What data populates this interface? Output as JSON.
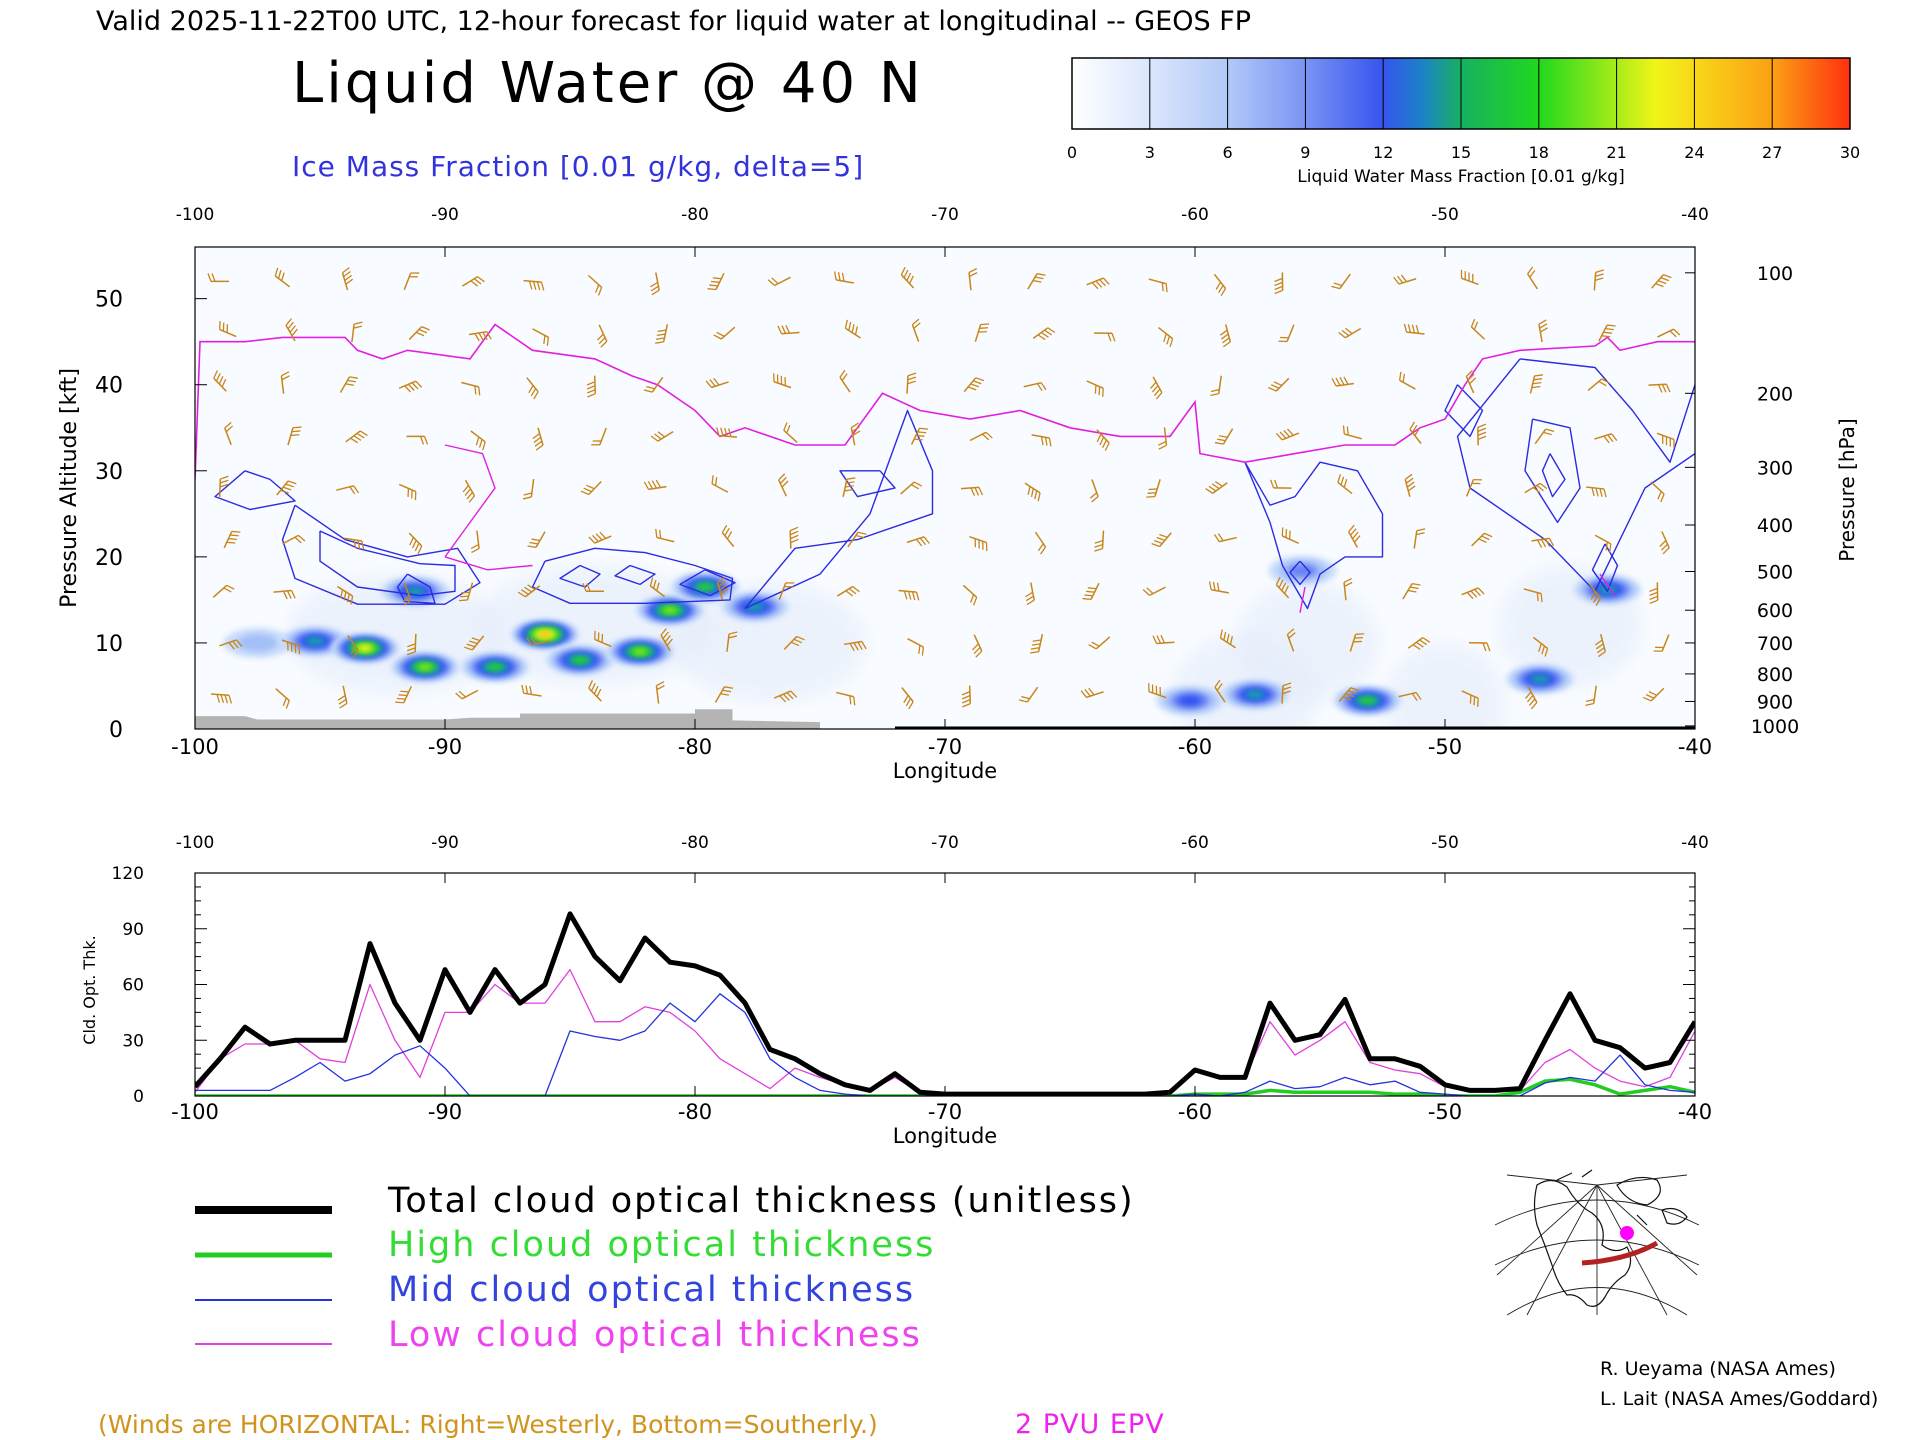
{
  "header": {
    "valid_line": "Valid 2025-11-22T00 UTC, 12-hour forecast for liquid water at longitudinal -- GEOS FP",
    "title": "Liquid Water @ 40 N",
    "subtitle": "Ice Mass Fraction [0.01 g/kg, delta=5]"
  },
  "colors": {
    "ice_contour": "#2b2be0",
    "epv": "#e020e0",
    "wind": "#c8861a",
    "total": "#000000",
    "high": "#22cc22",
    "mid": "#2233dd",
    "low": "#e040e0",
    "terrain": "#b4b4b4",
    "map_track": "#b22222",
    "map_point": "#ff00ff"
  },
  "colorbar": {
    "ticks": [
      "0",
      "3",
      "6",
      "9",
      "12",
      "15",
      "18",
      "21",
      "24",
      "27",
      "30"
    ],
    "label": "Liquid Water Mass Fraction [0.01 g/kg]",
    "colors": [
      "#f8fbff",
      "#c8dcfb",
      "#a4c0f8",
      "#6a82f4",
      "#2f52f0",
      "#18a0a8",
      "#20d020",
      "#8ee81a",
      "#f4f41a",
      "#fbb81a",
      "#ff4a10"
    ]
  },
  "chart_data": [
    {
      "type": "heatmap",
      "title": "Liquid Water @ 40 N",
      "xlabel": "Longitude",
      "ylabel": "Pressure Altitude [kft]",
      "y2label": "Pressure [hPa]",
      "xlim": [
        -100,
        -40
      ],
      "ylim": [
        0,
        56
      ],
      "x_ticks": [
        "-100",
        "-90",
        "-80",
        "-70",
        "-60",
        "-50",
        "-40"
      ],
      "x_tick_values": [
        -100,
        -90,
        -80,
        -70,
        -60,
        -50,
        -40
      ],
      "y_ticks": [
        "0",
        "10",
        "20",
        "30",
        "40",
        "50"
      ],
      "y_tick_values": [
        0,
        10,
        20,
        30,
        40,
        50
      ],
      "pressure_ticks": [
        "100",
        "200",
        "300",
        "400",
        "500",
        "600",
        "700",
        "800",
        "900",
        "1000"
      ],
      "pressure_tick_kft": [
        53,
        39,
        30.4,
        23.7,
        18.3,
        13.8,
        10,
        6.4,
        3.2,
        0.36
      ],
      "liquid_blobs": [
        {
          "lon": -97.5,
          "kft": 10.0,
          "value": 7
        },
        {
          "lon": -95.2,
          "kft": 10.2,
          "value": 15
        },
        {
          "lon": -93.2,
          "kft": 9.4,
          "value": 26
        },
        {
          "lon": -90.8,
          "kft": 7.2,
          "value": 21
        },
        {
          "lon": -91.2,
          "kft": 16.0,
          "value": 15
        },
        {
          "lon": -88.0,
          "kft": 7.2,
          "value": 20
        },
        {
          "lon": -86.0,
          "kft": 11.0,
          "value": 28
        },
        {
          "lon": -84.6,
          "kft": 8.0,
          "value": 20
        },
        {
          "lon": -82.2,
          "kft": 9.0,
          "value": 22
        },
        {
          "lon": -81.0,
          "kft": 13.8,
          "value": 22
        },
        {
          "lon": -79.6,
          "kft": 16.5,
          "value": 18
        },
        {
          "lon": -77.6,
          "kft": 14.2,
          "value": 16
        },
        {
          "lon": -60.2,
          "kft": 3.3,
          "value": 14
        },
        {
          "lon": -57.6,
          "kft": 4.0,
          "value": 15
        },
        {
          "lon": -55.7,
          "kft": 18.4,
          "value": 10
        },
        {
          "lon": -53.1,
          "kft": 3.3,
          "value": 19
        },
        {
          "lon": -46.2,
          "kft": 5.8,
          "value": 16
        },
        {
          "lon": -43.5,
          "kft": 16.2,
          "value": 17
        }
      ],
      "ice_contour_levels": [
        5,
        10,
        15,
        20
      ],
      "epv_label": "2 PVU EPV",
      "wind_note": "(Winds are HORIZONTAL: Right=Westerly, Bottom=Southerly.)"
    },
    {
      "type": "line",
      "xlabel": "Longitude",
      "ylabel": "Cld. Opt. Thk.",
      "xlim": [
        -100,
        -40
      ],
      "ylim": [
        0,
        120
      ],
      "x_ticks": [
        "-100",
        "-90",
        "-80",
        "-70",
        "-60",
        "-50",
        "-40"
      ],
      "x_tick_values": [
        -100,
        -90,
        -80,
        -70,
        -60,
        -50,
        -40
      ],
      "y_ticks": [
        "0",
        "30",
        "60",
        "90",
        "120"
      ],
      "y_tick_values": [
        0,
        30,
        60,
        90,
        120
      ],
      "x": [
        -100,
        -99,
        -98,
        -97,
        -96,
        -95,
        -94,
        -93,
        -92,
        -91,
        -90,
        -89,
        -88,
        -87,
        -86,
        -85,
        -84,
        -83,
        -82,
        -81,
        -80,
        -79,
        -78,
        -77,
        -76,
        -75,
        -74,
        -73,
        -72,
        -71,
        -70,
        -69,
        -68,
        -67,
        -66,
        -65,
        -64,
        -63,
        -62,
        -61,
        -60,
        -59,
        -58,
        -57,
        -56,
        -55,
        -54,
        -53,
        -52,
        -51,
        -50,
        -49,
        -48,
        -47,
        -46,
        -45,
        -44,
        -43,
        -42,
        -41,
        -40
      ],
      "series": [
        {
          "name": "Total cloud optical thickness (unitless)",
          "key": "total",
          "values": [
            5,
            20,
            37,
            28,
            30,
            30,
            30,
            82,
            50,
            30,
            68,
            45,
            68,
            50,
            60,
            98,
            75,
            62,
            85,
            72,
            70,
            65,
            50,
            25,
            20,
            12,
            6,
            3,
            12,
            2,
            1,
            1,
            1,
            1,
            1,
            1,
            1,
            1,
            1,
            2,
            14,
            10,
            10,
            50,
            30,
            33,
            52,
            20,
            20,
            16,
            6,
            3,
            3,
            4,
            30,
            55,
            30,
            26,
            15,
            18,
            40
          ]
        },
        {
          "name": "High cloud optical thickness",
          "key": "high",
          "values": [
            0,
            0,
            0,
            0,
            0,
            0,
            0,
            0,
            0,
            0,
            0,
            0,
            0,
            0,
            0,
            0,
            0,
            0,
            0,
            0,
            0,
            0,
            0,
            0,
            0,
            0,
            0,
            0,
            0,
            0,
            0,
            0,
            0,
            0,
            0,
            0,
            0,
            0,
            0,
            0,
            1,
            1,
            1,
            3,
            2,
            2,
            2,
            2,
            1,
            1,
            0,
            0,
            0,
            2,
            8,
            9,
            6,
            1,
            3,
            5,
            2
          ]
        },
        {
          "name": "Mid cloud optical thickness",
          "key": "mid",
          "values": [
            3,
            3,
            3,
            3,
            10,
            18,
            8,
            12,
            22,
            27,
            15,
            0,
            0,
            0,
            0,
            35,
            32,
            30,
            35,
            50,
            40,
            55,
            45,
            20,
            10,
            3,
            1,
            0,
            0,
            0,
            0,
            0,
            0,
            0,
            0,
            0,
            0,
            0,
            0,
            0,
            1,
            0,
            2,
            8,
            4,
            5,
            10,
            6,
            8,
            2,
            1,
            0,
            0,
            0,
            7,
            10,
            8,
            22,
            6,
            3,
            2
          ]
        },
        {
          "name": "Low cloud optical thickness",
          "key": "low",
          "values": [
            2,
            20,
            28,
            28,
            30,
            20,
            18,
            60,
            30,
            10,
            45,
            45,
            60,
            50,
            50,
            68,
            40,
            40,
            48,
            45,
            35,
            20,
            12,
            4,
            15,
            10,
            6,
            3,
            10,
            2,
            1,
            1,
            1,
            1,
            1,
            1,
            1,
            1,
            1,
            2,
            14,
            10,
            10,
            40,
            22,
            30,
            40,
            18,
            14,
            12,
            5,
            3,
            3,
            3,
            18,
            25,
            15,
            8,
            5,
            10,
            35
          ]
        }
      ]
    }
  ],
  "legend": {
    "total": "Total cloud optical thickness (unitless)",
    "high": "High cloud optical thickness",
    "mid": "Mid cloud optical thickness",
    "low": "Low cloud optical thickness"
  },
  "credits": {
    "line1": "R. Ueyama (NASA Ames)",
    "line2": "L. Lait (NASA Ames/Goddard)"
  }
}
